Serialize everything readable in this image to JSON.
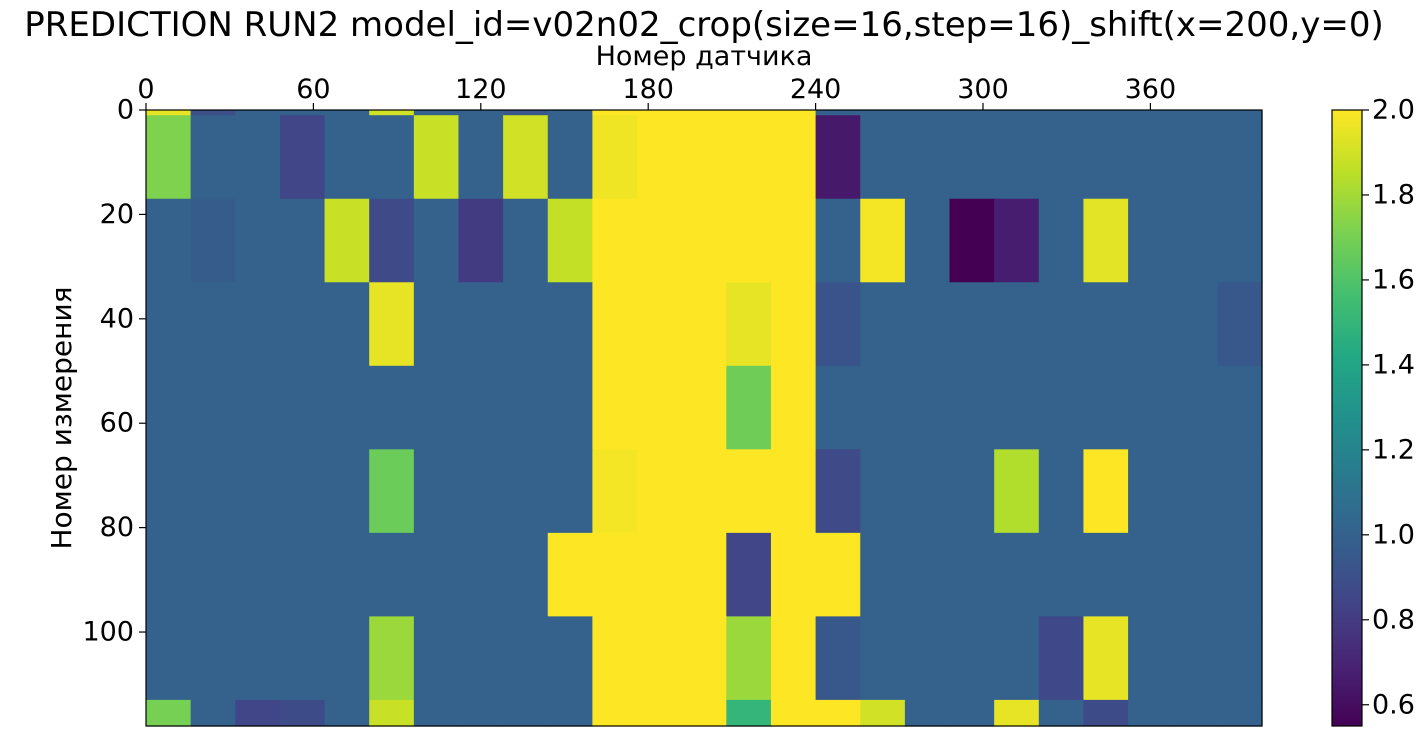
{
  "chart_data": {
    "type": "heatmap",
    "title": "PREDICTION RUN2 model_id=v02n02_crop(size=16,step=16)_shift(x=200,y=0)",
    "xlabel": "Номер датчика",
    "ylabel": "Номер измерения",
    "x_axis_position": "top",
    "xlim": [
      0,
      400
    ],
    "ylim": [
      0,
      118
    ],
    "y_inverted": true,
    "xticks": [
      0,
      60,
      120,
      180,
      240,
      300,
      360
    ],
    "yticks": [
      0,
      20,
      40,
      60,
      80,
      100
    ],
    "colormap": "viridis",
    "clim": [
      0.55,
      2.0
    ],
    "colorbar_ticks": [
      "2.0",
      "1.8",
      "1.6",
      "1.4",
      "1.2",
      "1.0",
      "0.8",
      "0.6"
    ],
    "colorbar_tick_values": [
      2.0,
      1.8,
      1.6,
      1.4,
      1.2,
      1.0,
      0.8,
      0.6
    ],
    "column_edges": [
      0,
      16,
      32,
      48,
      64,
      80,
      96,
      112,
      128,
      144,
      160,
      176,
      192,
      208,
      224,
      240,
      256,
      272,
      288,
      304,
      320,
      336,
      352,
      368,
      384,
      400
    ],
    "row_edges": [
      0,
      1,
      17,
      33,
      49,
      65,
      81,
      97,
      113,
      118
    ],
    "values": [
      [
        1.95,
        0.9,
        1.0,
        1.0,
        1.0,
        1.9,
        1.0,
        1.0,
        0.95,
        1.0,
        2.0,
        2.0,
        2.0,
        2.0,
        2.0,
        1.0,
        1.0,
        1.0,
        1.0,
        1.0,
        1.0,
        1.0,
        1.0,
        1.0,
        1.0
      ],
      [
        1.72,
        1.0,
        1.0,
        0.85,
        1.0,
        1.0,
        1.88,
        1.0,
        1.9,
        1.0,
        1.97,
        2.0,
        2.0,
        2.0,
        2.0,
        0.65,
        1.0,
        1.0,
        1.0,
        1.0,
        1.0,
        1.0,
        1.0,
        1.0,
        1.0
      ],
      [
        1.0,
        0.97,
        1.0,
        1.0,
        1.88,
        0.87,
        1.0,
        0.8,
        1.0,
        1.87,
        2.0,
        2.0,
        2.0,
        2.0,
        2.0,
        1.0,
        1.98,
        1.0,
        0.55,
        0.67,
        1.0,
        1.94,
        1.0,
        1.0,
        1.0
      ],
      [
        1.0,
        1.0,
        1.0,
        1.0,
        1.0,
        1.95,
        1.0,
        1.0,
        1.0,
        1.0,
        2.0,
        2.0,
        2.0,
        1.95,
        2.0,
        0.92,
        1.0,
        1.0,
        1.0,
        1.0,
        1.0,
        1.0,
        1.0,
        1.0,
        0.95
      ],
      [
        1.0,
        1.0,
        1.0,
        1.0,
        1.0,
        1.0,
        1.0,
        1.0,
        1.0,
        1.0,
        2.0,
        2.0,
        2.0,
        1.68,
        2.0,
        1.0,
        1.0,
        1.0,
        1.0,
        1.0,
        1.0,
        1.0,
        1.0,
        1.0,
        1.0
      ],
      [
        1.0,
        1.0,
        1.0,
        1.0,
        1.0,
        1.67,
        1.0,
        1.0,
        1.0,
        1.0,
        1.98,
        2.0,
        2.0,
        2.0,
        2.0,
        0.87,
        1.0,
        1.0,
        1.0,
        1.83,
        1.0,
        2.0,
        1.0,
        1.0,
        1.0
      ],
      [
        1.0,
        1.0,
        1.0,
        1.0,
        1.0,
        1.0,
        1.0,
        1.0,
        1.0,
        2.0,
        2.0,
        2.0,
        2.0,
        0.85,
        2.0,
        2.0,
        1.0,
        1.0,
        1.0,
        1.0,
        1.0,
        1.0,
        1.0,
        1.0,
        1.0
      ],
      [
        1.0,
        1.0,
        1.0,
        1.0,
        1.0,
        1.78,
        1.0,
        1.0,
        1.0,
        1.0,
        2.0,
        2.0,
        2.0,
        1.78,
        2.0,
        0.95,
        1.0,
        1.0,
        1.0,
        1.0,
        0.86,
        1.95,
        1.0,
        1.0,
        1.0
      ],
      [
        1.7,
        1.0,
        0.85,
        0.88,
        1.0,
        1.88,
        1.0,
        1.0,
        1.0,
        1.0,
        2.0,
        2.0,
        2.0,
        1.5,
        2.0,
        2.0,
        1.9,
        1.0,
        1.0,
        1.95,
        1.0,
        0.88,
        1.0,
        1.0,
        1.0
      ]
    ]
  }
}
